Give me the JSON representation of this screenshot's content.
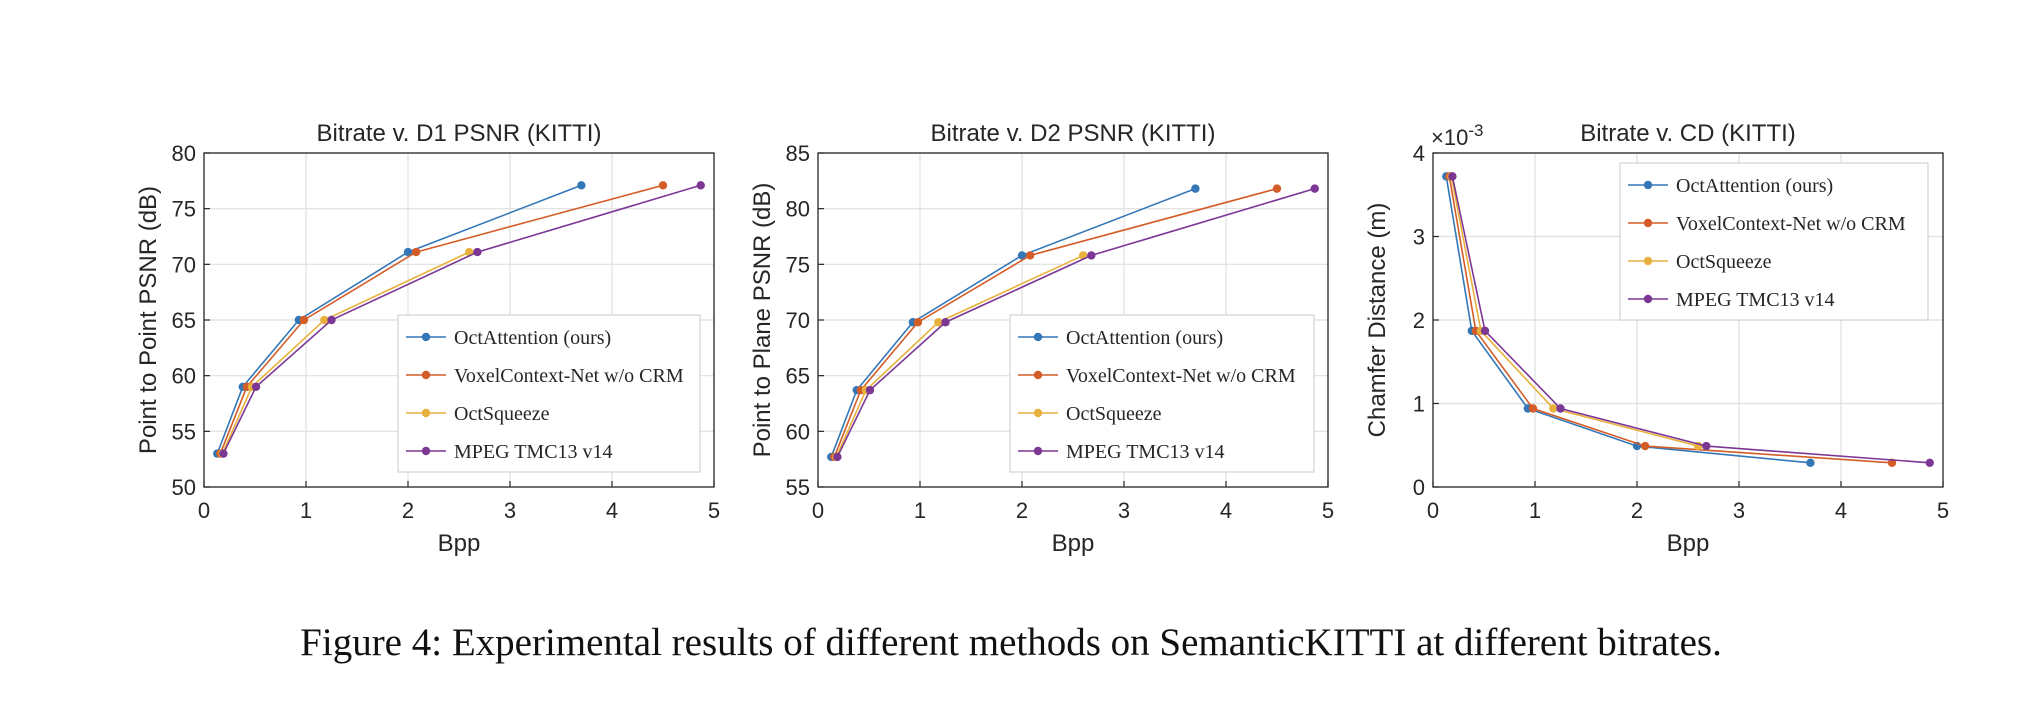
{
  "caption": "Figure 4: Experimental results of different methods on SemanticKITTI at different bitrates.",
  "colors": {
    "OctAttention (ours)": "#3477b7",
    "VoxelContext-Net w/o CRM": "#d45d27",
    "OctSqueeze": "#e8b13b",
    "MPEG TMC13 v14": "#7c3795"
  },
  "chart_data": [
    {
      "type": "line",
      "title": "Bitrate v. D1 PSNR (KITTI)",
      "xlabel": "Bpp",
      "ylabel": "Point to Point PSNR (dB)",
      "xlim": [
        0,
        5
      ],
      "ylim": [
        50,
        80
      ],
      "xticks": [
        "0",
        "1",
        "2",
        "3",
        "4",
        "5"
      ],
      "yticks": [
        "50",
        "55",
        "60",
        "65",
        "70",
        "75",
        "80"
      ],
      "grid": true,
      "legend_position": "bottom-right",
      "series": [
        {
          "name": "OctAttention (ours)",
          "x": [
            0.13,
            0.38,
            0.93,
            2.0,
            3.7
          ],
          "y": [
            53.0,
            59.0,
            65.0,
            71.1,
            77.1
          ]
        },
        {
          "name": "VoxelContext-Net w/o CRM",
          "x": [
            0.16,
            0.42,
            0.98,
            2.08,
            4.5
          ],
          "y": [
            53.0,
            59.0,
            65.0,
            71.1,
            77.1
          ]
        },
        {
          "name": "OctSqueeze",
          "x": [
            0.18,
            0.47,
            1.18,
            2.6
          ],
          "y": [
            53.0,
            59.0,
            65.0,
            71.1
          ]
        },
        {
          "name": "MPEG TMC13 v14",
          "x": [
            0.19,
            0.51,
            1.25,
            2.68,
            4.87
          ],
          "y": [
            53.0,
            59.0,
            65.0,
            71.1,
            77.1
          ]
        }
      ]
    },
    {
      "type": "line",
      "title": "Bitrate v. D2 PSNR (KITTI)",
      "xlabel": "Bpp",
      "ylabel": "Point to Plane PSNR (dB)",
      "xlim": [
        0,
        5
      ],
      "ylim": [
        55,
        85
      ],
      "xticks": [
        "0",
        "1",
        "2",
        "3",
        "4",
        "5"
      ],
      "yticks": [
        "55",
        "60",
        "65",
        "70",
        "75",
        "80",
        "85"
      ],
      "grid": true,
      "legend_position": "bottom-right",
      "series": [
        {
          "name": "OctAttention (ours)",
          "x": [
            0.13,
            0.38,
            0.93,
            2.0,
            3.7
          ],
          "y": [
            57.7,
            63.7,
            69.8,
            75.8,
            81.8
          ]
        },
        {
          "name": "VoxelContext-Net w/o CRM",
          "x": [
            0.16,
            0.42,
            0.98,
            2.08,
            4.5
          ],
          "y": [
            57.7,
            63.7,
            69.8,
            75.8,
            81.8
          ]
        },
        {
          "name": "OctSqueeze",
          "x": [
            0.18,
            0.47,
            1.18,
            2.6
          ],
          "y": [
            57.7,
            63.7,
            69.8,
            75.8
          ]
        },
        {
          "name": "MPEG TMC13 v14",
          "x": [
            0.19,
            0.51,
            1.25,
            2.68,
            4.87
          ],
          "y": [
            57.7,
            63.7,
            69.8,
            75.8,
            81.8
          ]
        }
      ]
    },
    {
      "type": "line",
      "title": "Bitrate v. CD (KITTI)",
      "xlabel": "Bpp",
      "ylabel": "Chamfer Distance (m)",
      "y_exponent": "×10",
      "y_exponent_power": "-3",
      "xlim": [
        0,
        5
      ],
      "ylim": [
        0,
        4
      ],
      "xticks": [
        "0",
        "1",
        "2",
        "3",
        "4",
        "5"
      ],
      "yticks": [
        "0",
        "1",
        "2",
        "3",
        "4"
      ],
      "grid": true,
      "legend_position": "top-right",
      "series": [
        {
          "name": "OctAttention (ours)",
          "x": [
            0.13,
            0.38,
            0.93,
            2.0,
            3.7
          ],
          "y": [
            3.72,
            1.87,
            0.94,
            0.49,
            0.29
          ]
        },
        {
          "name": "VoxelContext-Net w/o CRM",
          "x": [
            0.16,
            0.42,
            0.98,
            2.08,
            4.5
          ],
          "y": [
            3.72,
            1.87,
            0.94,
            0.49,
            0.29
          ]
        },
        {
          "name": "OctSqueeze",
          "x": [
            0.18,
            0.47,
            1.18,
            2.6
          ],
          "y": [
            3.72,
            1.87,
            0.94,
            0.49
          ]
        },
        {
          "name": "MPEG TMC13 v14",
          "x": [
            0.19,
            0.51,
            1.25,
            2.68,
            4.87
          ],
          "y": [
            3.72,
            1.87,
            0.94,
            0.49,
            0.29
          ]
        }
      ]
    }
  ]
}
